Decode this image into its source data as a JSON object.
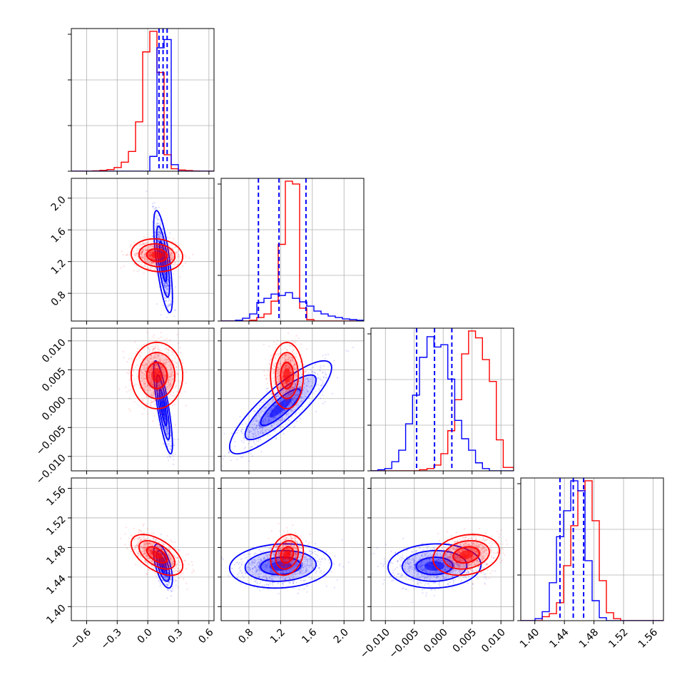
{
  "colors": {
    "red": "#ff0000",
    "blue": "#0000ff",
    "grid": "#b0b0b0",
    "axis": "#000000"
  },
  "chart_data": {
    "type": "corner",
    "grid": true,
    "series": [
      {
        "color": "red"
      },
      {
        "color": "blue"
      }
    ],
    "parameters": [
      {
        "xlim": [
          -0.75,
          0.65
        ],
        "ticks": [
          -0.6,
          -0.3,
          0.0,
          0.3,
          0.6
        ],
        "tick_labels": [
          "−0.6",
          "−0.3",
          "0.0",
          "0.3",
          "0.6"
        ]
      },
      {
        "xlim": [
          0.45,
          2.25
        ],
        "ticks": [
          0.8,
          1.2,
          1.6,
          2.0
        ],
        "tick_labels": [
          "0.8",
          "1.2",
          "1.6",
          "2.0"
        ]
      },
      {
        "xlim": [
          -0.0125,
          0.0122
        ],
        "ticks": [
          -0.01,
          -0.005,
          0.0,
          0.005,
          0.01
        ],
        "tick_labels": [
          "−0.010",
          "−0.005",
          "0.000",
          "0.005",
          "0.010"
        ]
      },
      {
        "xlim": [
          1.381,
          1.574
        ],
        "ticks": [
          1.4,
          1.44,
          1.48,
          1.52,
          1.56
        ],
        "tick_labels": [
          "1.40",
          "1.44",
          "1.48",
          "1.52",
          "1.56"
        ]
      }
    ],
    "posteriors": {
      "red": {
        "mean": [
          0.09,
          1.28,
          0.004,
          1.47
        ],
        "std": [
          0.11,
          0.09,
          0.0025,
          0.012
        ],
        "corr": [
          [
            1,
            -0.1,
            0,
            -0.55
          ],
          [
            -0.1,
            1,
            0,
            0.2
          ],
          [
            0,
            0,
            1,
            0.2
          ],
          [
            -0.55,
            0.2,
            0.2,
            1
          ]
        ]
      },
      "blue": {
        "mean": [
          0.15,
          1.2,
          -0.0015,
          1.455
        ],
        "std": [
          0.04,
          0.28,
          0.0035,
          0.013
        ],
        "corr": [
          [
            1,
            -0.7,
            -0.8,
            -0.6
          ],
          [
            -0.7,
            1,
            0.85,
            0.1
          ],
          [
            -0.8,
            0.85,
            1,
            0.05
          ],
          [
            -0.6,
            0.1,
            0.05,
            1
          ]
        ]
      }
    },
    "quantiles_blue": [
      [
        0.11,
        0.15,
        0.19
      ],
      [
        0.92,
        1.18,
        1.52
      ],
      [
        -0.0046,
        -0.0015,
        0.0015
      ],
      [
        1.434,
        1.452,
        1.466
      ]
    ],
    "diagonal_histograms": [
      {
        "edges": [
          -0.75,
          -0.68,
          -0.61,
          -0.54,
          -0.47,
          -0.4,
          -0.33,
          -0.26,
          -0.19,
          -0.12,
          -0.05,
          0.02,
          0.09,
          0.16,
          0.23,
          0.3,
          0.37,
          0.44,
          0.51,
          0.58,
          0.65
        ],
        "red": [
          0,
          0,
          0,
          0.5,
          1.0,
          2.0,
          4.5,
          11,
          24,
          60,
          145,
          170,
          120,
          20,
          3,
          1.5,
          0.8,
          0.3,
          0,
          0
        ],
        "blue": [
          0,
          0,
          0,
          0,
          0,
          0,
          0,
          0,
          0,
          0,
          0,
          18,
          150,
          160,
          8,
          0,
          0,
          0,
          0,
          0
        ]
      },
      {
        "edges": [
          0.45,
          0.54,
          0.63,
          0.72,
          0.81,
          0.9,
          0.99,
          1.08,
          1.17,
          1.26,
          1.35,
          1.44,
          1.53,
          1.62,
          1.71,
          1.8,
          1.89,
          1.98,
          2.07,
          2.16,
          2.25
        ],
        "red": [
          0,
          0,
          0,
          0,
          1,
          5,
          10,
          28,
          108,
          197,
          193,
          18,
          2,
          0,
          0,
          0,
          0,
          0,
          0,
          0
        ],
        "blue": [
          0,
          0,
          1,
          4,
          10,
          26,
          32,
          38,
          36,
          40,
          32,
          27,
          21,
          14,
          10,
          7,
          5,
          3,
          2,
          1
        ]
      },
      {
        "edges": [
          -0.0125,
          -0.0113,
          -0.0101,
          -0.0089,
          -0.0077,
          -0.0065,
          -0.0053,
          -0.0041,
          -0.0028,
          -0.0016,
          -0.0004,
          0.0008,
          0.002,
          0.0032,
          0.0044,
          0.0056,
          0.0068,
          0.008,
          0.0092,
          0.0104,
          0.0122
        ],
        "red": [
          0,
          0,
          0,
          0,
          0,
          0,
          0,
          1,
          2,
          5,
          15,
          35,
          62,
          102,
          122,
          116,
          97,
          78,
          27,
          3
        ],
        "blue": [
          0,
          1,
          2,
          8,
          18,
          41,
          66,
          99,
          117,
          108,
          110,
          80,
          44,
          28,
          18,
          7,
          2,
          0,
          0,
          0
        ]
      },
      {
        "edges": [
          1.381,
          1.3907,
          1.4003,
          1.41,
          1.4196,
          1.4293,
          1.4389,
          1.4486,
          1.4582,
          1.4679,
          1.4775,
          1.4872,
          1.4968,
          1.5065,
          1.5161,
          1.5258,
          1.5354,
          1.5451,
          1.5547,
          1.5644,
          1.574
        ],
        "red": [
          0,
          0,
          0,
          4,
          7,
          18,
          55,
          95,
          130,
          140,
          100,
          40,
          8,
          2,
          0,
          0,
          0,
          0,
          0,
          0
        ],
        "blue": [
          0,
          0,
          2,
          9,
          38,
          84,
          110,
          140,
          130,
          60,
          20,
          3,
          0,
          0,
          0,
          0,
          0,
          0,
          0,
          0
        ]
      }
    ]
  }
}
